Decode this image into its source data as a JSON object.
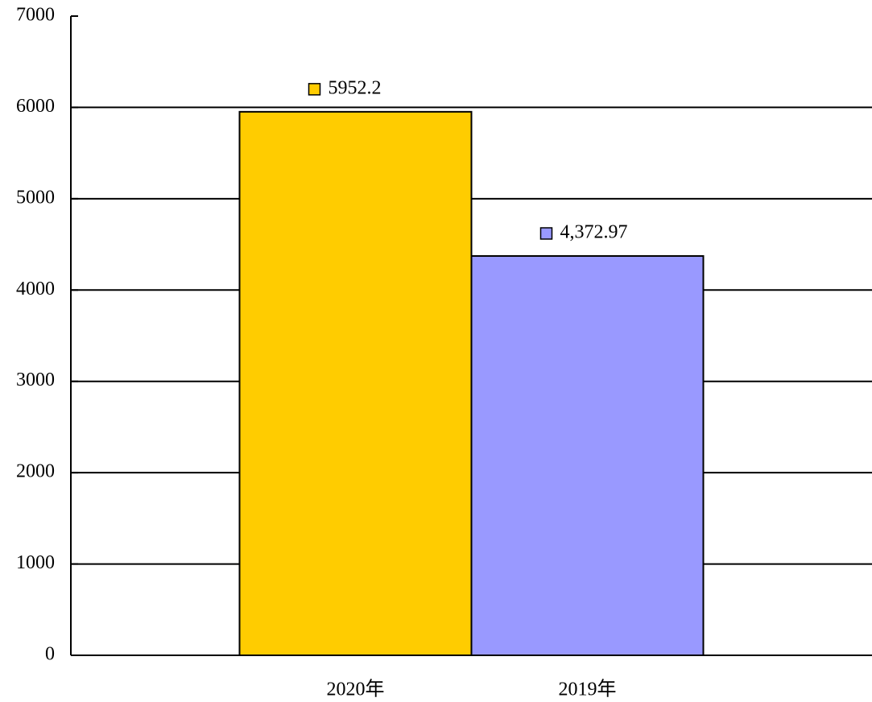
{
  "chart_data": {
    "type": "bar",
    "categories": [
      "2020年",
      "2019年"
    ],
    "values": [
      5952.2,
      4372.97
    ],
    "value_labels": [
      "5952.2",
      "4,372.97"
    ],
    "colors": [
      "#ffcc00",
      "#9999ff"
    ],
    "ylim": [
      0,
      7000
    ],
    "yticks": [
      0,
      1000,
      2000,
      3000,
      4000,
      5000,
      6000,
      7000
    ],
    "grid": true
  }
}
